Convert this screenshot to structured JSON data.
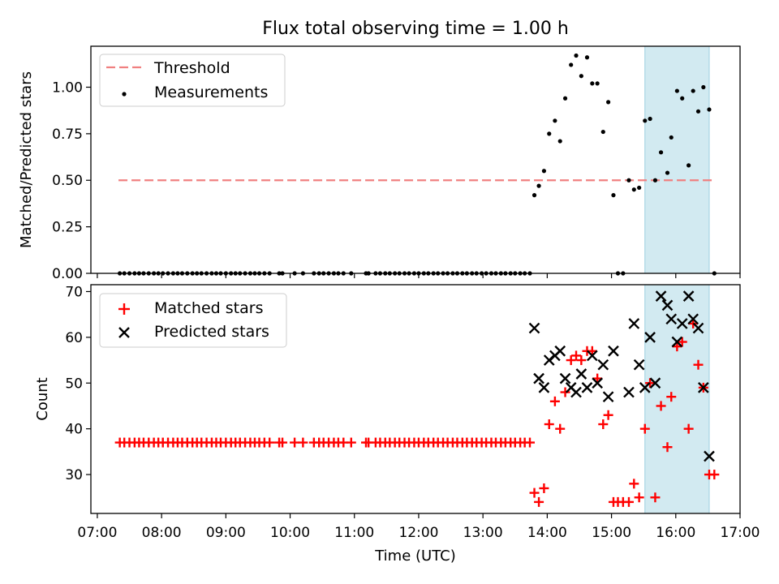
{
  "chart_data": [
    {
      "type": "scatter",
      "panel": "top",
      "title": "Flux total observing time = 1.00 h",
      "ylabel": "Matched/Predicted stars",
      "xlabel": "",
      "xlim_hours": [
        6.9,
        17.0
      ],
      "ylim": [
        0,
        1.22
      ],
      "yticks": [
        0.0,
        0.25,
        0.5,
        0.75,
        1.0
      ],
      "ytick_labels": [
        "0.00",
        "0.25",
        "0.50",
        "0.75",
        "1.00"
      ],
      "legend_position": "top-left",
      "shaded_region": {
        "start": 15.52,
        "end": 16.52,
        "color": "#add8e6"
      },
      "threshold": {
        "name": "Threshold",
        "value": 0.5,
        "start": 7.33,
        "end": 16.6,
        "color": "#f08080"
      },
      "series": [
        {
          "name": "Measurements",
          "color": "#000000",
          "marker": "dot",
          "points": [
            [
              7.35,
              0
            ],
            [
              7.42,
              0
            ],
            [
              7.5,
              0
            ],
            [
              7.58,
              0
            ],
            [
              7.65,
              0
            ],
            [
              7.72,
              0
            ],
            [
              7.8,
              0
            ],
            [
              7.88,
              0
            ],
            [
              7.95,
              0
            ],
            [
              8.02,
              0
            ],
            [
              8.1,
              0
            ],
            [
              8.18,
              0
            ],
            [
              8.25,
              0
            ],
            [
              8.32,
              0
            ],
            [
              8.4,
              0
            ],
            [
              8.48,
              0
            ],
            [
              8.55,
              0
            ],
            [
              8.62,
              0
            ],
            [
              8.7,
              0
            ],
            [
              8.78,
              0
            ],
            [
              8.85,
              0
            ],
            [
              8.92,
              0
            ],
            [
              9.0,
              0
            ],
            [
              9.08,
              0
            ],
            [
              9.15,
              0
            ],
            [
              9.22,
              0
            ],
            [
              9.3,
              0
            ],
            [
              9.38,
              0
            ],
            [
              9.45,
              0
            ],
            [
              9.52,
              0
            ],
            [
              9.6,
              0
            ],
            [
              9.68,
              0
            ],
            [
              9.83,
              0
            ],
            [
              9.88,
              0
            ],
            [
              10.07,
              0
            ],
            [
              10.2,
              0
            ],
            [
              10.37,
              0
            ],
            [
              10.45,
              0
            ],
            [
              10.52,
              0
            ],
            [
              10.6,
              0
            ],
            [
              10.68,
              0
            ],
            [
              10.75,
              0
            ],
            [
              10.83,
              0
            ],
            [
              10.95,
              0
            ],
            [
              11.18,
              0
            ],
            [
              11.22,
              0
            ],
            [
              11.33,
              0
            ],
            [
              11.4,
              0
            ],
            [
              11.48,
              0
            ],
            [
              11.55,
              0
            ],
            [
              11.63,
              0
            ],
            [
              11.7,
              0
            ],
            [
              11.78,
              0
            ],
            [
              11.85,
              0
            ],
            [
              11.93,
              0
            ],
            [
              12.0,
              0
            ],
            [
              12.08,
              0
            ],
            [
              12.15,
              0
            ],
            [
              12.23,
              0
            ],
            [
              12.3,
              0
            ],
            [
              12.38,
              0
            ],
            [
              12.45,
              0
            ],
            [
              12.53,
              0
            ],
            [
              12.6,
              0
            ],
            [
              12.68,
              0
            ],
            [
              12.75,
              0
            ],
            [
              12.83,
              0
            ],
            [
              12.9,
              0
            ],
            [
              12.98,
              0
            ],
            [
              13.05,
              0
            ],
            [
              13.13,
              0
            ],
            [
              13.2,
              0
            ],
            [
              13.28,
              0
            ],
            [
              13.35,
              0
            ],
            [
              13.43,
              0
            ],
            [
              13.5,
              0
            ],
            [
              13.58,
              0
            ],
            [
              13.65,
              0
            ],
            [
              13.73,
              0
            ],
            [
              13.8,
              0.42
            ],
            [
              13.87,
              0.47
            ],
            [
              13.95,
              0.55
            ],
            [
              14.03,
              0.75
            ],
            [
              14.12,
              0.82
            ],
            [
              14.2,
              0.71
            ],
            [
              14.28,
              0.94
            ],
            [
              14.37,
              1.12
            ],
            [
              14.45,
              1.17
            ],
            [
              14.53,
              1.06
            ],
            [
              14.62,
              1.16
            ],
            [
              14.7,
              1.02
            ],
            [
              14.78,
              1.02
            ],
            [
              14.87,
              0.76
            ],
            [
              14.95,
              0.92
            ],
            [
              15.03,
              0.42
            ],
            [
              15.1,
              0
            ],
            [
              15.18,
              0
            ],
            [
              15.27,
              0.5
            ],
            [
              15.35,
              0.45
            ],
            [
              15.43,
              0.46
            ],
            [
              15.52,
              0.82
            ],
            [
              15.6,
              0.83
            ],
            [
              15.68,
              0.5
            ],
            [
              15.77,
              0.65
            ],
            [
              15.87,
              0.54
            ],
            [
              15.93,
              0.73
            ],
            [
              16.02,
              0.98
            ],
            [
              16.1,
              0.94
            ],
            [
              16.2,
              0.58
            ],
            [
              16.27,
              0.98
            ],
            [
              16.35,
              0.87
            ],
            [
              16.43,
              1.0
            ],
            [
              16.52,
              0.88
            ],
            [
              16.6,
              0
            ]
          ]
        }
      ]
    },
    {
      "type": "scatter",
      "panel": "bottom",
      "title": "",
      "ylabel": "Count",
      "xlabel": "Time (UTC)",
      "xlim_hours": [
        6.9,
        17.0
      ],
      "xticks_hours": [
        7,
        8,
        9,
        10,
        11,
        12,
        13,
        14,
        15,
        16,
        17
      ],
      "xtick_labels": [
        "07:00",
        "08:00",
        "09:00",
        "10:00",
        "11:00",
        "12:00",
        "13:00",
        "14:00",
        "15:00",
        "16:00",
        "17:00"
      ],
      "ylim": [
        21.5,
        71.5
      ],
      "yticks": [
        30,
        40,
        50,
        60,
        70
      ],
      "ytick_labels": [
        "30",
        "40",
        "50",
        "60",
        "70"
      ],
      "legend_position": "top-left",
      "shaded_region": {
        "start": 15.52,
        "end": 16.52,
        "color": "#add8e6"
      },
      "series": [
        {
          "name": "Matched stars",
          "color": "#ff0000",
          "marker": "plus",
          "points": [
            [
              7.35,
              37
            ],
            [
              7.42,
              37
            ],
            [
              7.5,
              37
            ],
            [
              7.58,
              37
            ],
            [
              7.65,
              37
            ],
            [
              7.72,
              37
            ],
            [
              7.8,
              37
            ],
            [
              7.88,
              37
            ],
            [
              7.95,
              37
            ],
            [
              8.02,
              37
            ],
            [
              8.1,
              37
            ],
            [
              8.18,
              37
            ],
            [
              8.25,
              37
            ],
            [
              8.32,
              37
            ],
            [
              8.4,
              37
            ],
            [
              8.48,
              37
            ],
            [
              8.55,
              37
            ],
            [
              8.62,
              37
            ],
            [
              8.7,
              37
            ],
            [
              8.78,
              37
            ],
            [
              8.85,
              37
            ],
            [
              8.92,
              37
            ],
            [
              9.0,
              37
            ],
            [
              9.08,
              37
            ],
            [
              9.15,
              37
            ],
            [
              9.22,
              37
            ],
            [
              9.3,
              37
            ],
            [
              9.38,
              37
            ],
            [
              9.45,
              37
            ],
            [
              9.52,
              37
            ],
            [
              9.6,
              37
            ],
            [
              9.68,
              37
            ],
            [
              9.83,
              37
            ],
            [
              9.88,
              37
            ],
            [
              10.07,
              37
            ],
            [
              10.2,
              37
            ],
            [
              10.37,
              37
            ],
            [
              10.45,
              37
            ],
            [
              10.52,
              37
            ],
            [
              10.6,
              37
            ],
            [
              10.68,
              37
            ],
            [
              10.75,
              37
            ],
            [
              10.83,
              37
            ],
            [
              10.95,
              37
            ],
            [
              11.18,
              37
            ],
            [
              11.22,
              37
            ],
            [
              11.33,
              37
            ],
            [
              11.4,
              37
            ],
            [
              11.48,
              37
            ],
            [
              11.55,
              37
            ],
            [
              11.63,
              37
            ],
            [
              11.7,
              37
            ],
            [
              11.78,
              37
            ],
            [
              11.85,
              37
            ],
            [
              11.93,
              37
            ],
            [
              12.0,
              37
            ],
            [
              12.08,
              37
            ],
            [
              12.15,
              37
            ],
            [
              12.23,
              37
            ],
            [
              12.3,
              37
            ],
            [
              12.38,
              37
            ],
            [
              12.45,
              37
            ],
            [
              12.53,
              37
            ],
            [
              12.6,
              37
            ],
            [
              12.68,
              37
            ],
            [
              12.75,
              37
            ],
            [
              12.83,
              37
            ],
            [
              12.9,
              37
            ],
            [
              12.98,
              37
            ],
            [
              13.05,
              37
            ],
            [
              13.13,
              37
            ],
            [
              13.2,
              37
            ],
            [
              13.28,
              37
            ],
            [
              13.35,
              37
            ],
            [
              13.43,
              37
            ],
            [
              13.5,
              37
            ],
            [
              13.58,
              37
            ],
            [
              13.65,
              37
            ],
            [
              13.73,
              37
            ],
            [
              13.8,
              26
            ],
            [
              13.87,
              24
            ],
            [
              13.95,
              27
            ],
            [
              14.03,
              41
            ],
            [
              14.12,
              46
            ],
            [
              14.2,
              40
            ],
            [
              14.28,
              48
            ],
            [
              14.37,
              55
            ],
            [
              14.45,
              56
            ],
            [
              14.53,
              55
            ],
            [
              14.62,
              57
            ],
            [
              14.7,
              57
            ],
            [
              14.78,
              51
            ],
            [
              14.87,
              41
            ],
            [
              14.95,
              43
            ],
            [
              15.03,
              24
            ],
            [
              15.1,
              24
            ],
            [
              15.18,
              24
            ],
            [
              15.27,
              24
            ],
            [
              15.35,
              28
            ],
            [
              15.43,
              25
            ],
            [
              15.52,
              40
            ],
            [
              15.6,
              50
            ],
            [
              15.68,
              25
            ],
            [
              15.77,
              45
            ],
            [
              15.87,
              36
            ],
            [
              15.93,
              47
            ],
            [
              16.02,
              58
            ],
            [
              16.1,
              59
            ],
            [
              16.2,
              40
            ],
            [
              16.27,
              63
            ],
            [
              16.35,
              54
            ],
            [
              16.43,
              49
            ],
            [
              16.52,
              30
            ],
            [
              16.6,
              30
            ]
          ]
        },
        {
          "name": "Predicted stars",
          "color": "#000000",
          "marker": "x",
          "points": [
            [
              13.8,
              62
            ],
            [
              13.87,
              51
            ],
            [
              13.95,
              49
            ],
            [
              14.03,
              55
            ],
            [
              14.12,
              56
            ],
            [
              14.2,
              57
            ],
            [
              14.28,
              51
            ],
            [
              14.37,
              49
            ],
            [
              14.45,
              48
            ],
            [
              14.53,
              52
            ],
            [
              14.62,
              49
            ],
            [
              14.7,
              56
            ],
            [
              14.78,
              50
            ],
            [
              14.87,
              54
            ],
            [
              14.95,
              47
            ],
            [
              15.03,
              57
            ],
            [
              15.27,
              48
            ],
            [
              15.35,
              63
            ],
            [
              15.43,
              54
            ],
            [
              15.52,
              49
            ],
            [
              15.6,
              60
            ],
            [
              15.68,
              50
            ],
            [
              15.77,
              69
            ],
            [
              15.87,
              67
            ],
            [
              15.93,
              64
            ],
            [
              16.02,
              59
            ],
            [
              16.1,
              63
            ],
            [
              16.2,
              69
            ],
            [
              16.27,
              64
            ],
            [
              16.35,
              62
            ],
            [
              16.43,
              49
            ],
            [
              16.52,
              34
            ]
          ]
        }
      ]
    }
  ]
}
